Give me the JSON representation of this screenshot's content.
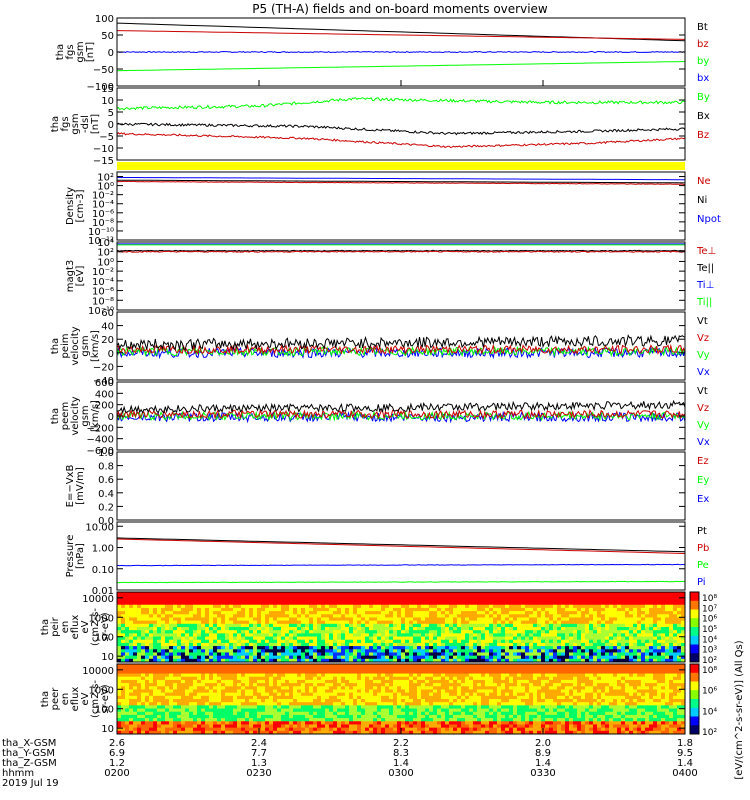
{
  "title": "P5 (TH-A) fields and on-board moments overview",
  "colors": {
    "black": "#000000",
    "red": "#cc0000",
    "green": "#00ff00",
    "blue": "#0000ff",
    "yellow": "#ffff00"
  },
  "chart_data": [
    {
      "type": "line",
      "ylabel": [
        "tha",
        "fgs",
        "gsm",
        "[nT]"
      ],
      "ylim": [
        -100,
        100
      ],
      "yticks": [
        {
          "v": 100,
          "t": "100"
        },
        {
          "v": 50,
          "t": "50"
        },
        {
          "v": 0,
          "t": "0"
        },
        {
          "v": -50,
          "t": "−50"
        },
        {
          "v": -100,
          "t": "−100"
        }
      ],
      "legend": [
        {
          "t": "Bt",
          "c": "black"
        },
        {
          "t": "bz",
          "c": "red"
        },
        {
          "t": "by",
          "c": "green"
        },
        {
          "t": "bx",
          "c": "blue"
        }
      ],
      "series": [
        {
          "c": "black",
          "t": [
            0,
            120
          ],
          "v": [
            85,
            33
          ]
        },
        {
          "c": "red",
          "t": [
            0,
            120
          ],
          "v": [
            63,
            37
          ]
        },
        {
          "c": "green",
          "t": [
            0,
            120
          ],
          "v": [
            -55,
            -28
          ]
        },
        {
          "c": "blue",
          "t": [
            0,
            120
          ],
          "v": [
            0,
            0
          ],
          "noise": 1.5
        }
      ]
    },
    {
      "type": "line",
      "ylabel": [
        "tha",
        "fgs",
        "gsm",
        "-dsl",
        "[nT]"
      ],
      "ylim": [
        -15,
        15
      ],
      "yticks": [
        {
          "v": 15,
          "t": "15"
        },
        {
          "v": 10,
          "t": "10"
        },
        {
          "v": 5,
          "t": "5"
        },
        {
          "v": 0,
          "t": "0"
        },
        {
          "v": -5,
          "t": "−5"
        },
        {
          "v": -10,
          "t": "−10"
        },
        {
          "v": -15,
          "t": "−15"
        }
      ],
      "legend": [
        {
          "t": "By",
          "c": "green"
        },
        {
          "t": "Bx",
          "c": "black"
        },
        {
          "t": "Bz",
          "c": "red"
        }
      ],
      "series": [
        {
          "c": "green",
          "t": [
            0,
            30,
            50,
            90,
            120
          ],
          "v": [
            6.5,
            7.5,
            10.5,
            9,
            9
          ],
          "noise": 0.6
        },
        {
          "c": "black",
          "t": [
            0,
            40,
            70,
            100,
            120
          ],
          "v": [
            0,
            -1,
            -4,
            -3,
            -2
          ],
          "noise": 0.5
        },
        {
          "c": "red",
          "t": [
            0,
            40,
            70,
            100,
            120
          ],
          "v": [
            -4,
            -6,
            -9.5,
            -8,
            -6
          ],
          "noise": 0.4
        }
      ]
    },
    {
      "type": "line",
      "ylabel": [
        "Density",
        "[cm-3]"
      ],
      "ylim": [
        -12,
        3
      ],
      "log": true,
      "yticks": [
        {
          "v": 2,
          "t": "10²"
        },
        {
          "v": 0,
          "t": "10⁰"
        },
        {
          "v": -2,
          "t": "10⁻²"
        },
        {
          "v": -4,
          "t": "10⁻⁴"
        },
        {
          "v": -6,
          "t": "10⁻⁶"
        },
        {
          "v": -8,
          "t": "10⁻⁸"
        },
        {
          "v": -10,
          "t": "10⁻¹⁰"
        },
        {
          "v": -12,
          "t": "10⁻¹²"
        }
      ],
      "legend": [
        {
          "t": "Ne",
          "c": "red"
        },
        {
          "t": "Ni",
          "c": "black"
        },
        {
          "t": "Npot",
          "c": "blue"
        }
      ],
      "series": [
        {
          "c": "blue",
          "t": [
            0,
            120
          ],
          "v": [
            1.8,
            1.3
          ]
        },
        {
          "c": "black",
          "t": [
            0,
            120
          ],
          "v": [
            1.2,
            0.6
          ]
        },
        {
          "c": "red",
          "t": [
            0,
            120
          ],
          "v": [
            0.9,
            0.3
          ],
          "noise": 0.05
        }
      ]
    },
    {
      "type": "line",
      "ylabel": [
        "magt3",
        "[eV]"
      ],
      "ylim": [
        -10,
        4
      ],
      "log": true,
      "yticks": [
        {
          "v": 4,
          "t": "10⁴"
        },
        {
          "v": 2,
          "t": "10²"
        },
        {
          "v": 0,
          "t": "10⁰"
        },
        {
          "v": -2,
          "t": "10⁻²"
        },
        {
          "v": -4,
          "t": "10⁻⁴"
        },
        {
          "v": -6,
          "t": "10⁻⁶"
        },
        {
          "v": -8,
          "t": "10⁻⁸"
        },
        {
          "v": -10,
          "t": "10⁻¹⁰"
        }
      ],
      "legend": [
        {
          "t": "Te⊥",
          "c": "red"
        },
        {
          "t": "Te||",
          "c": "black"
        },
        {
          "t": "Ti⊥",
          "c": "blue"
        },
        {
          "t": "Ti||",
          "c": "green"
        }
      ],
      "series": [
        {
          "c": "blue",
          "t": [
            0,
            120
          ],
          "v": [
            3.6,
            3.6
          ]
        },
        {
          "c": "green",
          "t": [
            0,
            120
          ],
          "v": [
            3.4,
            3.4
          ]
        },
        {
          "c": "black",
          "t": [
            0,
            120
          ],
          "v": [
            2.2,
            2.2
          ],
          "noise": 0.08
        },
        {
          "c": "red",
          "t": [
            0,
            120
          ],
          "v": [
            2.0,
            2.0
          ],
          "noise": 0.1
        }
      ]
    },
    {
      "type": "line",
      "ylabel": [
        "tha",
        "peim",
        "velocity",
        "gsm",
        "[km/s]"
      ],
      "ylim": [
        -40,
        60
      ],
      "yticks": [
        {
          "v": 60,
          "t": "60"
        },
        {
          "v": 40,
          "t": "40"
        },
        {
          "v": 20,
          "t": "20"
        },
        {
          "v": 0,
          "t": "0"
        },
        {
          "v": -20,
          "t": "−20"
        },
        {
          "v": -40,
          "t": "−40"
        }
      ],
      "legend": [
        {
          "t": "Vt",
          "c": "black"
        },
        {
          "t": "Vz",
          "c": "red"
        },
        {
          "t": "Vy",
          "c": "green"
        },
        {
          "t": "Vx",
          "c": "blue"
        }
      ],
      "series": [
        {
          "c": "blue",
          "t": [
            0,
            120
          ],
          "v": [
            0,
            0
          ],
          "noise": 7
        },
        {
          "c": "green",
          "t": [
            0,
            120
          ],
          "v": [
            2,
            2
          ],
          "noise": 6
        },
        {
          "c": "red",
          "t": [
            0,
            120
          ],
          "v": [
            5,
            5
          ],
          "noise": 6
        },
        {
          "c": "black",
          "t": [
            0,
            60,
            120
          ],
          "v": [
            12,
            15,
            18
          ],
          "noise": 8
        }
      ]
    },
    {
      "type": "line",
      "ylabel": [
        "tha",
        "peem",
        "velocity",
        "gsm",
        "[km/s]"
      ],
      "ylim": [
        -600,
        600
      ],
      "yticks": [
        {
          "v": 600,
          "t": "600"
        },
        {
          "v": 400,
          "t": "400"
        },
        {
          "v": 200,
          "t": "200"
        },
        {
          "v": 0,
          "t": "0"
        },
        {
          "v": -200,
          "t": "−200"
        },
        {
          "v": -400,
          "t": "−400"
        },
        {
          "v": -600,
          "t": "−600"
        }
      ],
      "legend": [
        {
          "t": "Vt",
          "c": "black"
        },
        {
          "t": "Vz",
          "c": "red"
        },
        {
          "t": "Vy",
          "c": "green"
        },
        {
          "t": "Vx",
          "c": "blue"
        }
      ],
      "series": [
        {
          "c": "blue",
          "t": [
            0,
            120
          ],
          "v": [
            -20,
            -20
          ],
          "noise": 80
        },
        {
          "c": "green",
          "t": [
            0,
            120
          ],
          "v": [
            0,
            0
          ],
          "noise": 70
        },
        {
          "c": "red",
          "t": [
            0,
            120
          ],
          "v": [
            30,
            30
          ],
          "noise": 70
        },
        {
          "c": "black",
          "t": [
            0,
            60,
            120
          ],
          "v": [
            120,
            150,
            200
          ],
          "noise": 70
        }
      ]
    },
    {
      "type": "line",
      "ylabel": [
        "E=−VxB",
        "[mV/m]"
      ],
      "ylim": [
        0,
        1
      ],
      "yticks": [
        {
          "v": 1,
          "t": "1.0"
        },
        {
          "v": 0.8,
          "t": "0.8"
        },
        {
          "v": 0.6,
          "t": "0.6"
        },
        {
          "v": 0.4,
          "t": "0.4"
        },
        {
          "v": 0.2,
          "t": "0.2"
        },
        {
          "v": 0,
          "t": "0.0"
        }
      ],
      "legend": [
        {
          "t": "Ez",
          "c": "red"
        },
        {
          "t": "Ey",
          "c": "green"
        },
        {
          "t": "Ex",
          "c": "blue"
        }
      ],
      "series": []
    },
    {
      "type": "line",
      "ylabel": [
        "Pressure",
        "[nPa]"
      ],
      "ylim": [
        -2,
        1.2
      ],
      "log": true,
      "yticks": [
        {
          "v": 1,
          "t": "10.00"
        },
        {
          "v": 0,
          "t": "1.00"
        },
        {
          "v": -1,
          "t": "0.10"
        },
        {
          "v": -2,
          "t": "0.01"
        }
      ],
      "legend": [
        {
          "t": "Pt",
          "c": "black"
        },
        {
          "t": "Pb",
          "c": "red"
        },
        {
          "t": "Pe",
          "c": "green"
        },
        {
          "t": "Pi",
          "c": "blue"
        }
      ],
      "series": [
        {
          "c": "black",
          "t": [
            0,
            120
          ],
          "v": [
            0.45,
            -0.2
          ]
        },
        {
          "c": "red",
          "t": [
            0,
            120
          ],
          "v": [
            0.4,
            -0.28
          ]
        },
        {
          "c": "blue",
          "t": [
            0,
            120
          ],
          "v": [
            -0.85,
            -0.8
          ],
          "noise": 0.01
        },
        {
          "c": "green",
          "t": [
            0,
            120
          ],
          "v": [
            -1.65,
            -1.6
          ],
          "noise": 0.01
        }
      ]
    },
    {
      "type": "heatmap",
      "ylabel": [
        "tha",
        "peir",
        "en",
        "eflux",
        "eV",
        "(cm2-s-",
        "sr-eV)"
      ],
      "ylim": [
        0.7,
        4.3
      ],
      "log": true,
      "yticks": [
        {
          "v": 4,
          "t": "10000"
        },
        {
          "v": 3,
          "t": "1000"
        },
        {
          "v": 2,
          "t": "100"
        },
        {
          "v": 1,
          "t": "10"
        }
      ]
    },
    {
      "type": "heatmap",
      "ylabel": [
        "tha",
        "peer",
        "en",
        "eflux",
        "eV",
        "(cm2-s-",
        "sr-eV)"
      ],
      "ylim": [
        0.7,
        4.3
      ],
      "log": true,
      "yticks": [
        {
          "v": 4,
          "t": "10000"
        },
        {
          "v": 3,
          "t": "1000"
        },
        {
          "v": 2,
          "t": "100"
        },
        {
          "v": 1,
          "t": "10"
        }
      ]
    }
  ],
  "colorbar": {
    "label": "[eV/(cm^2-s-sr-eV)] (All Qs)",
    "ticks": [
      "10⁸",
      "10⁷",
      "10⁶",
      "10⁵",
      "10⁴",
      "10³",
      "10²"
    ],
    "ticks2": [
      "10⁸",
      "10⁶",
      "10⁴",
      "10²"
    ]
  },
  "xaxis": {
    "rows": [
      {
        "label": "tha_X-GSM",
        "values": [
          "2.6",
          "2.4",
          "2.2",
          "2.0",
          "1.8"
        ]
      },
      {
        "label": "tha_Y-GSM",
        "values": [
          "6.9",
          "7.7",
          "8.3",
          "8.9",
          "9.5"
        ]
      },
      {
        "label": "tha_Z-GSM",
        "values": [
          "1.2",
          "1.3",
          "1.4",
          "1.4",
          "1.4"
        ]
      },
      {
        "label": "hhmm",
        "values": [
          "0200",
          "0230",
          "0300",
          "0330",
          "0400"
        ]
      }
    ],
    "date": "2019 Jul 19"
  }
}
